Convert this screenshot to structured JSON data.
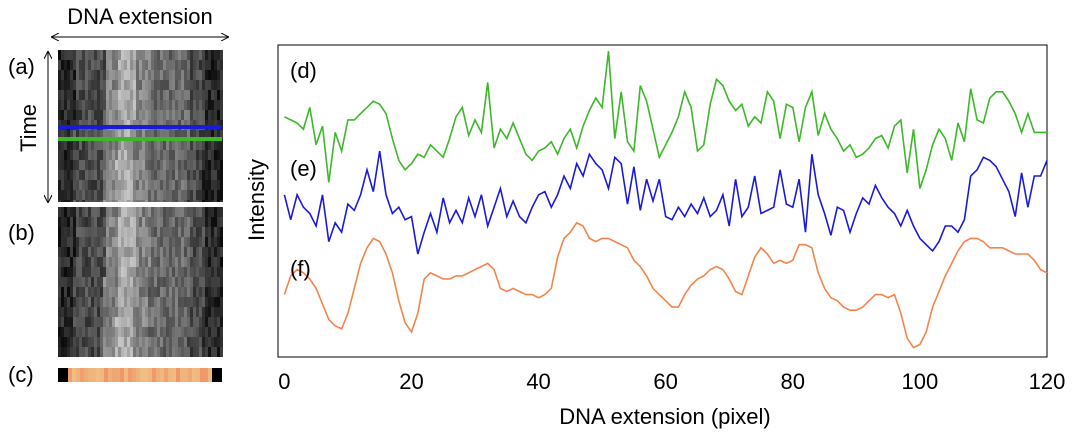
{
  "kymograph": {
    "title": "DNA extension",
    "axis_label": "Time",
    "panel_labels": [
      "(a)",
      "(b)",
      "(c)"
    ]
  },
  "chart_data": {
    "type": "line",
    "xlabel": "DNA extension (pixel)",
    "ylabel": "Intensity",
    "xlim": [
      -1,
      120
    ],
    "xticks": [
      0,
      20,
      40,
      60,
      80,
      100,
      120
    ],
    "ylim": [
      0,
      100
    ],
    "grid": false,
    "x": [
      0,
      1,
      2,
      3,
      4,
      5,
      6,
      7,
      8,
      9,
      10,
      11,
      12,
      13,
      14,
      15,
      16,
      17,
      18,
      19,
      20,
      21,
      22,
      23,
      24,
      25,
      26,
      27,
      28,
      29,
      30,
      31,
      32,
      33,
      34,
      35,
      36,
      37,
      38,
      39,
      40,
      41,
      42,
      43,
      44,
      45,
      46,
      47,
      48,
      49,
      50,
      51,
      52,
      53,
      54,
      55,
      56,
      57,
      58,
      59,
      60,
      61,
      62,
      63,
      64,
      65,
      66,
      67,
      68,
      69,
      70,
      71,
      72,
      73,
      74,
      75,
      76,
      77,
      78,
      79,
      80,
      81,
      82,
      83,
      84,
      85,
      86,
      87,
      88,
      89,
      90,
      91,
      92,
      93,
      94,
      95,
      96,
      97,
      98,
      99,
      100,
      101,
      102,
      103,
      104,
      105,
      106,
      107,
      108,
      109,
      110,
      111,
      112,
      113,
      114,
      115,
      116,
      117,
      118,
      119,
      120
    ],
    "series": [
      {
        "name": "(d)",
        "color": "#3cb829",
        "values": [
          77,
          76,
          75,
          73,
          80,
          68,
          74,
          56,
          72,
          66,
          76,
          76,
          78,
          80,
          82,
          81,
          78,
          70,
          63,
          60,
          62,
          65,
          64,
          68,
          66,
          64,
          70,
          77,
          80,
          71,
          76,
          72,
          88,
          67,
          73,
          70,
          75,
          70,
          65,
          63,
          66,
          67,
          69,
          65,
          70,
          73,
          67,
          74,
          79,
          83,
          80,
          98,
          70,
          85,
          69,
          66,
          87,
          82,
          73,
          64,
          68,
          72,
          77,
          85,
          80,
          66,
          68,
          81,
          89,
          87,
          82,
          79,
          81,
          74,
          77,
          75,
          85,
          82,
          70,
          81,
          80,
          69,
          80,
          85,
          71,
          78,
          73,
          70,
          66,
          68,
          64,
          65,
          67,
          70,
          71,
          67,
          74,
          76,
          59,
          73,
          54,
          60,
          68,
          73,
          70,
          63,
          75,
          69,
          86,
          76,
          75,
          83,
          85,
          85,
          82,
          78,
          72,
          78,
          72,
          72,
          72
        ]
      },
      {
        "name": "(e)",
        "color": "#1a1adb",
        "values": [
          52,
          44,
          52,
          48,
          46,
          42,
          52,
          37,
          43,
          40,
          49,
          47,
          52,
          60,
          53,
          66,
          52,
          46,
          48,
          44,
          45,
          33,
          40,
          46,
          40,
          51,
          43,
          47,
          43,
          51,
          45,
          52,
          42,
          48,
          54,
          45,
          50,
          45,
          43,
          48,
          52,
          53,
          48,
          52,
          58,
          54,
          62,
          58,
          65,
          62,
          60,
          54,
          64,
          62,
          49,
          61,
          47,
          57,
          50,
          57,
          45,
          44,
          48,
          45,
          49,
          46,
          51,
          45,
          47,
          52,
          42,
          57,
          45,
          48,
          58,
          46,
          47,
          48,
          60,
          49,
          48,
          57,
          40,
          65,
          52,
          46,
          39,
          48,
          47,
          40,
          46,
          51,
          49,
          55,
          51,
          48,
          46,
          42,
          47,
          42,
          38,
          36,
          34,
          37,
          42,
          42,
          40,
          44,
          58,
          60,
          64,
          63,
          61,
          57,
          53,
          45,
          59,
          48,
          58,
          58,
          63
        ]
      },
      {
        "name": "(f)",
        "color": "#f4844a",
        "values": [
          20,
          26,
          28,
          27,
          25,
          22,
          17,
          12,
          10,
          9,
          14,
          22,
          30,
          35,
          38,
          37,
          33,
          27,
          18,
          11,
          8,
          14,
          25,
          27,
          26,
          25,
          25,
          26,
          26,
          27,
          28,
          29,
          30,
          28,
          22,
          21,
          22,
          21,
          20,
          20,
          19,
          20,
          22,
          32,
          38,
          40,
          43,
          42,
          38,
          37,
          38,
          38,
          37,
          36,
          35,
          31,
          29,
          26,
          22,
          20,
          18,
          16,
          16,
          20,
          23,
          25,
          26,
          28,
          29,
          28,
          25,
          21,
          20,
          26,
          32,
          35,
          33,
          30,
          31,
          30,
          31,
          36,
          36,
          35,
          27,
          22,
          19,
          18,
          16,
          15,
          15,
          16,
          18,
          20,
          20,
          19,
          20,
          14,
          6,
          3,
          4,
          8,
          16,
          21,
          26,
          30,
          34,
          37,
          38,
          38,
          37,
          35,
          35,
          35,
          34,
          33,
          33,
          33,
          31,
          28,
          27
        ]
      }
    ]
  }
}
